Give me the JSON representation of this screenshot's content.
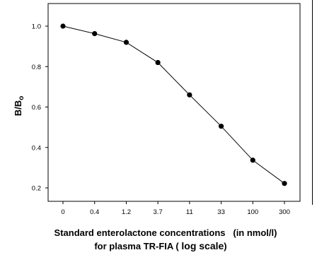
{
  "chart_data": {
    "type": "line",
    "categories": [
      "0",
      "0.4",
      "1.2",
      "3.7",
      "11",
      "33",
      "100",
      "300"
    ],
    "values": [
      1.0,
      0.963,
      0.92,
      0.82,
      0.66,
      0.505,
      0.337,
      0.222
    ],
    "yticks": [
      "0.2",
      "0.4",
      "0.6",
      "0.8",
      "1.0"
    ],
    "ylim": [
      0.15,
      1.1
    ],
    "ylabel_main": "B/B",
    "ylabel_sub": "o",
    "xlabel_line1": "Standard enterolactone concentrations   (in nmol/l)",
    "xlabel_line2_prefix": "for plasma TR-FIA ( ",
    "xlabel_line2_scale": "log scale",
    "xlabel_line2_suffix": ")"
  }
}
